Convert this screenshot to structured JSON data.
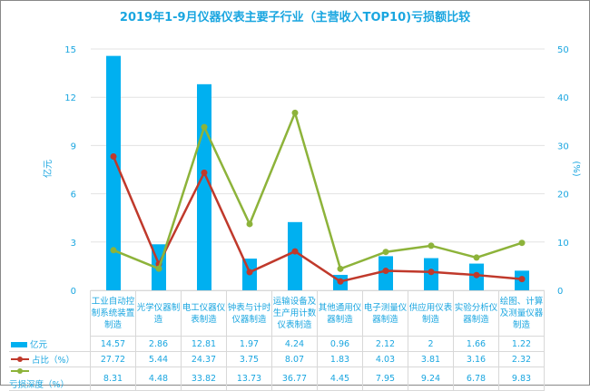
{
  "chart_data": {
    "type": "bar",
    "title": "2019年1-9月仪器仪表主要子行业（主营收入TOP10)亏损额比较",
    "ylabel_left": "亿元",
    "ylabel_right": "(%)",
    "ylim_left": [
      0,
      15
    ],
    "ylim_right": [
      0,
      50
    ],
    "yticks_left": [
      "0",
      "3",
      "6",
      "9",
      "12",
      "15"
    ],
    "yticks_right": [
      "0",
      "10",
      "20",
      "30",
      "40",
      "50"
    ],
    "categories": [
      "工业自动控制系统装置制造",
      "光学仪器制造",
      "电工仪器仪表制造",
      "钟表与计时仪器制造",
      "运输设备及生产用计数仪表制造",
      "其他通用仪器制造",
      "电子测量仪器制造",
      "供应用仪表制造",
      "实验分析仪器制造",
      "绘图、计算及测量仪器制造"
    ],
    "series": [
      {
        "name": "亿元",
        "type": "bar",
        "axis": "left",
        "color": "#00b0f0",
        "values": [
          14.57,
          2.86,
          12.81,
          1.97,
          4.24,
          0.96,
          2.12,
          2,
          1.66,
          1.22
        ],
        "labels": [
          "14.57",
          "2.86",
          "12.81",
          "1.97",
          "4.24",
          "0.96",
          "2.12",
          "2",
          "1.66",
          "1.22"
        ]
      },
      {
        "name": "占比（%）",
        "type": "line",
        "axis": "right",
        "color": "#c0392b",
        "values": [
          27.72,
          5.44,
          24.37,
          3.75,
          8.07,
          1.83,
          4.03,
          3.81,
          3.16,
          2.32
        ],
        "labels": [
          "27.72",
          "5.44",
          "24.37",
          "3.75",
          "8.07",
          "1.83",
          "4.03",
          "3.81",
          "3.16",
          "2.32"
        ]
      },
      {
        "name": "亏损深度（%）",
        "type": "line",
        "axis": "right",
        "color": "#8db33a",
        "values": [
          8.31,
          4.48,
          33.82,
          13.73,
          36.77,
          4.45,
          7.95,
          9.24,
          6.78,
          9.83
        ],
        "labels": [
          "8.31",
          "4.48",
          "33.82",
          "13.73",
          "36.77",
          "4.45",
          "7.95",
          "9.24",
          "6.78",
          "9.83"
        ]
      }
    ],
    "legend": "data-table",
    "grid": true
  }
}
